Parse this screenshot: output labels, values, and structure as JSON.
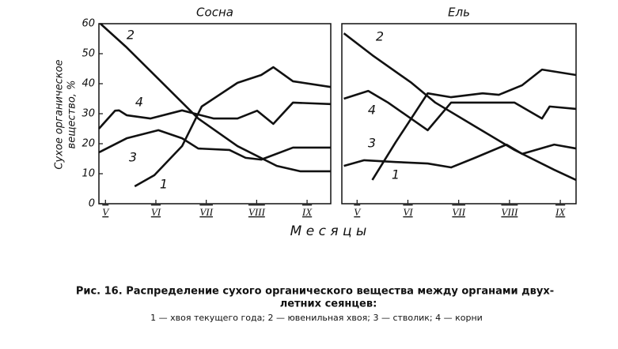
{
  "chart_data": [
    {
      "type": "line",
      "title": "Сосна",
      "ylabel": [
        "Сухое органическое",
        "вещество, %"
      ],
      "xlim": [
        4.87,
        9.47
      ],
      "ylim": [
        0,
        60
      ],
      "yticks": [
        0,
        10,
        20,
        30,
        40,
        50,
        60
      ],
      "xticks": [
        {
          "value": 5,
          "label": "V"
        },
        {
          "value": 6,
          "label": "VI"
        },
        {
          "value": 7,
          "label": "VII"
        },
        {
          "value": 8,
          "label": "VIII"
        },
        {
          "value": 9,
          "label": "IX"
        }
      ],
      "series": [
        {
          "name": "1",
          "color": "#111111",
          "x": [
            5.58,
            5.97,
            6.52,
            6.91,
            7.62,
            8.09,
            8.33,
            8.72,
            9.47
          ],
          "values": [
            5.8,
            9.5,
            19.2,
            32.4,
            40.3,
            42.9,
            45.5,
            40.8,
            38.9
          ]
        },
        {
          "name": "2",
          "color": "#111111",
          "x": [
            4.9,
            5.42,
            6.05,
            6.84,
            7.62,
            8.4,
            8.87,
            9.47
          ],
          "values": [
            60,
            52.1,
            41.6,
            28.4,
            19.2,
            12.6,
            10.8,
            10.8
          ]
        },
        {
          "name": "3",
          "color": "#111111",
          "x": [
            4.87,
            5.42,
            6.05,
            6.52,
            6.84,
            7.46,
            7.78,
            8.09,
            8.72,
            9.47
          ],
          "values": [
            17.1,
            21.8,
            24.5,
            21.8,
            18.4,
            17.9,
            15.3,
            14.7,
            18.7,
            18.7
          ]
        },
        {
          "name": "4",
          "color": "#111111",
          "x": [
            4.87,
            5.19,
            5.27,
            5.42,
            5.89,
            6.52,
            7.15,
            7.62,
            8.01,
            8.33,
            8.72,
            9.47
          ],
          "values": [
            25,
            31,
            31.1,
            29.5,
            28.4,
            31.1,
            28.4,
            28.4,
            31,
            26.6,
            33.7,
            33.2
          ]
        }
      ]
    },
    {
      "type": "line",
      "title": "Ель",
      "xlim": [
        4.7,
        9.31
      ],
      "ylim": [
        0,
        60
      ],
      "xticks": [
        {
          "value": 5,
          "label": "V"
        },
        {
          "value": 6,
          "label": "VI"
        },
        {
          "value": 7,
          "label": "VII"
        },
        {
          "value": 8,
          "label": "VIII"
        },
        {
          "value": 9,
          "label": "IX"
        }
      ],
      "series": [
        {
          "name": "1",
          "color": "#111111",
          "x": [
            5.3,
            5.76,
            6.39,
            6.85,
            7.47,
            7.79,
            8.25,
            8.64,
            9.31
          ],
          "values": [
            7.9,
            20.5,
            36.8,
            35.5,
            36.8,
            36.3,
            39.5,
            44.7,
            42.9
          ]
        },
        {
          "name": "2",
          "color": "#111111",
          "x": [
            4.74,
            5.3,
            6.07,
            6.54,
            7.32,
            8.1,
            8.88,
            9.31
          ],
          "values": [
            56.8,
            49.5,
            40.3,
            33.7,
            25.8,
            17.9,
            11.3,
            7.9
          ]
        },
        {
          "name": "3",
          "color": "#111111",
          "x": [
            4.74,
            5.14,
            5.76,
            6.39,
            6.85,
            7.32,
            7.94,
            8.25,
            8.88,
            9.31
          ],
          "values": [
            12.6,
            14.5,
            13.9,
            13.4,
            12.1,
            15.3,
            19.7,
            16.6,
            19.7,
            18.4
          ]
        },
        {
          "name": "4",
          "color": "#111111",
          "x": [
            4.74,
            5.22,
            5.61,
            6.39,
            6.85,
            8.1,
            8.64,
            8.79,
            9.31
          ],
          "values": [
            35,
            37.6,
            33.7,
            24.5,
            33.7,
            33.7,
            28.4,
            32.4,
            31.6
          ]
        }
      ]
    }
  ],
  "xlabel": "М е с я ц ы",
  "caption": {
    "title": "Рис. 16. Распределение сухого органического вещества между органами двух-",
    "title_cont": "летних сеянцев:",
    "legend": "1 — хвоя текущего года; 2 — ювенильная хвоя; 3 — стволик; 4 — корни"
  }
}
